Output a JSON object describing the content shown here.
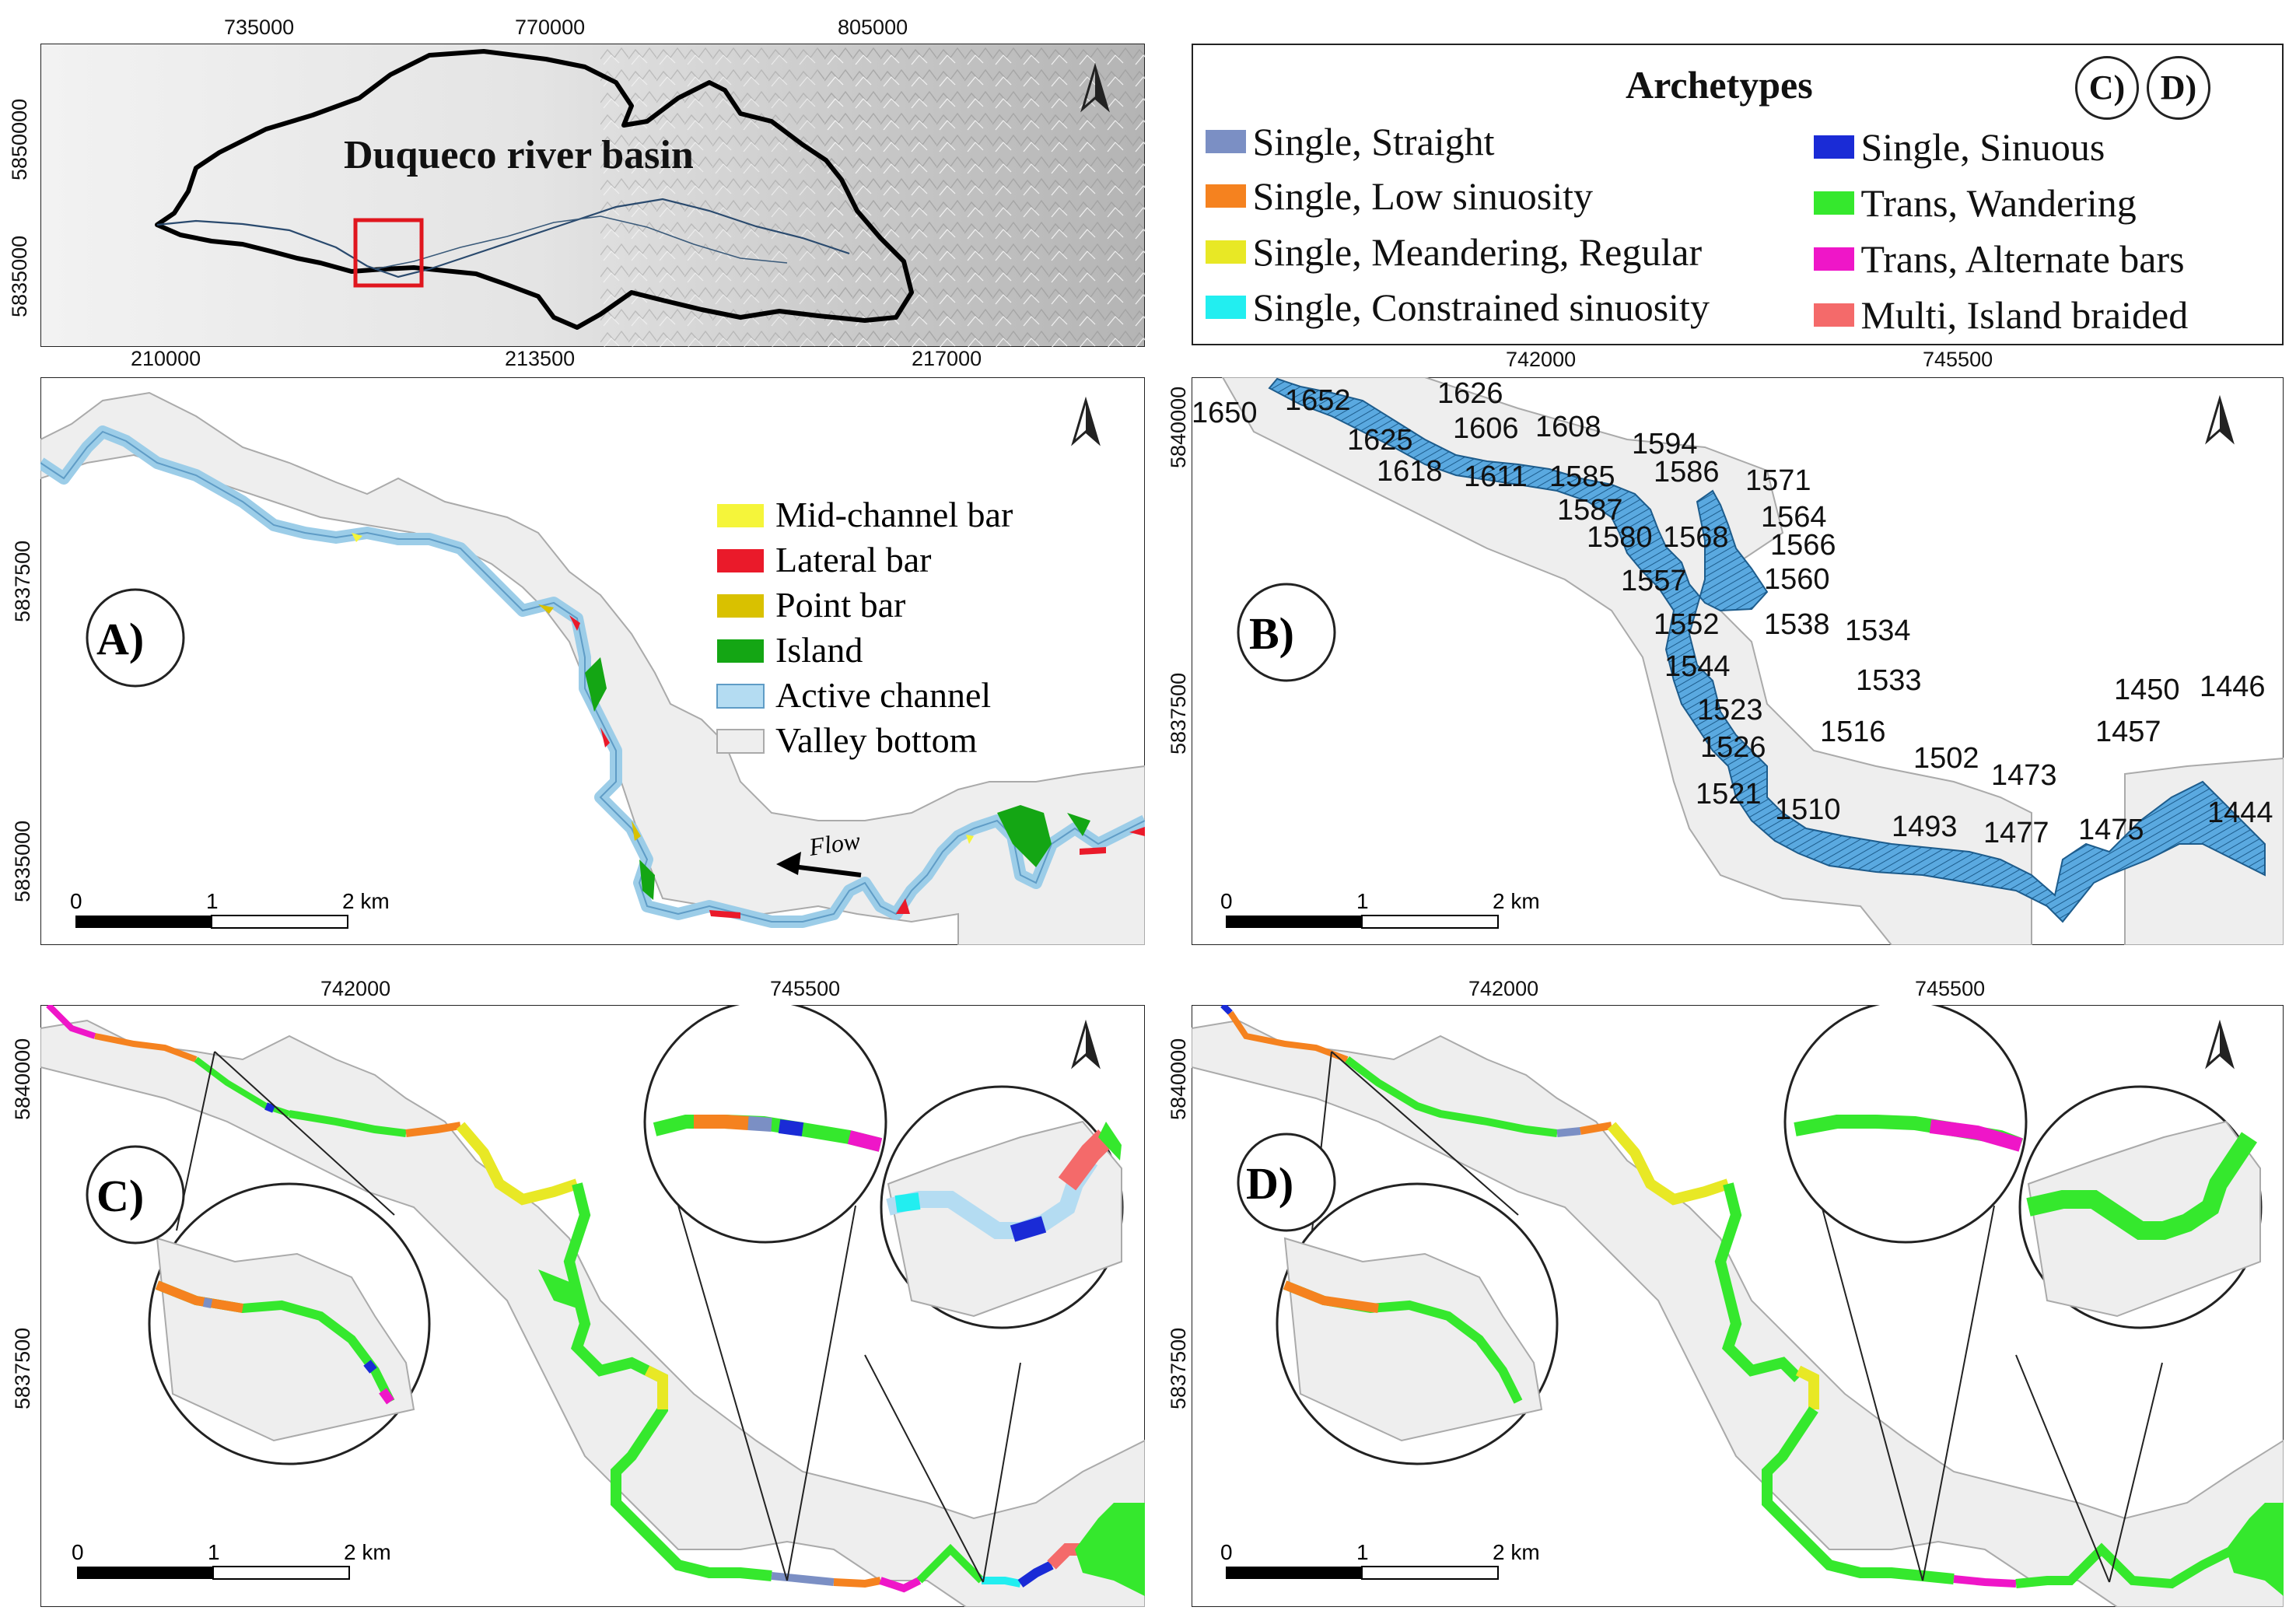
{
  "overview": {
    "title": "Duqueco river basin",
    "top_ticks": [
      "735000",
      "770000",
      "805000"
    ],
    "bottom_ticks": [
      "210000",
      "213500",
      "217000"
    ],
    "left_ticks": [
      "5850000",
      "5835000"
    ]
  },
  "legend_archetypes": {
    "title": "Archetypes",
    "badges": [
      "C)",
      "D)"
    ],
    "items": [
      {
        "label": "Single, Straight",
        "color": "#7b8fc4"
      },
      {
        "label": "Single, Low sinuosity",
        "color": "#f5821f"
      },
      {
        "label": "Single, Meandering, Regular",
        "color": "#e8e825"
      },
      {
        "label": "Single, Constrained sinuosity",
        "color": "#22eef0"
      },
      {
        "label": "Single, Sinuous",
        "color": "#1a2bd6"
      },
      {
        "label": "Trans, Wandering",
        "color": "#35e82d"
      },
      {
        "label": "Trans, Alternate bars",
        "color": "#ef16c8"
      },
      {
        "label": "Multi, Island braided",
        "color": "#f46a6a"
      }
    ]
  },
  "panel_a": {
    "label": "A)",
    "left_ticks": [
      "5837500",
      "5835000"
    ],
    "legend": [
      {
        "label": "Mid-channel bar",
        "color": "#f5f53a"
      },
      {
        "label": "Lateral bar",
        "color": "#ea1a2a"
      },
      {
        "label": "Point bar",
        "color": "#d9c100"
      },
      {
        "label": "Island",
        "color": "#14a614"
      },
      {
        "label": "Active channel",
        "color": "#b4dcf2"
      },
      {
        "label": "Valley bottom",
        "color": "#eeeeee"
      }
    ],
    "flow_label": "Flow",
    "scale": [
      "0",
      "1",
      "2 km"
    ]
  },
  "panel_b": {
    "label": "B)",
    "top_ticks": [
      "742000",
      "745500"
    ],
    "left_ticks": [
      "5840000",
      "5837500"
    ],
    "scale": [
      "0",
      "1",
      "2 km"
    ],
    "elevations": [
      "1650",
      "1652",
      "1626",
      "1625",
      "1606",
      "1608",
      "1594",
      "1618",
      "1611",
      "1585",
      "1586",
      "1571",
      "1587",
      "1564",
      "1580",
      "1568",
      "1566",
      "1557",
      "1560",
      "1552",
      "1538",
      "1534",
      "1544",
      "1533",
      "1523",
      "1516",
      "1526",
      "1502",
      "1521",
      "1510",
      "1473",
      "1493",
      "1477",
      "1475",
      "1450",
      "1446",
      "1457",
      "1444"
    ]
  },
  "panel_c": {
    "label": "C)",
    "top_ticks": [
      "742000",
      "745500"
    ],
    "left_ticks": [
      "5840000",
      "5837500"
    ],
    "scale": [
      "0",
      "1",
      "2 km"
    ]
  },
  "panel_d": {
    "label": "D)",
    "top_ticks": [
      "742000",
      "745500"
    ],
    "left_ticks": [
      "5840000",
      "5837500"
    ],
    "scale": [
      "0",
      "1",
      "2 km"
    ]
  }
}
